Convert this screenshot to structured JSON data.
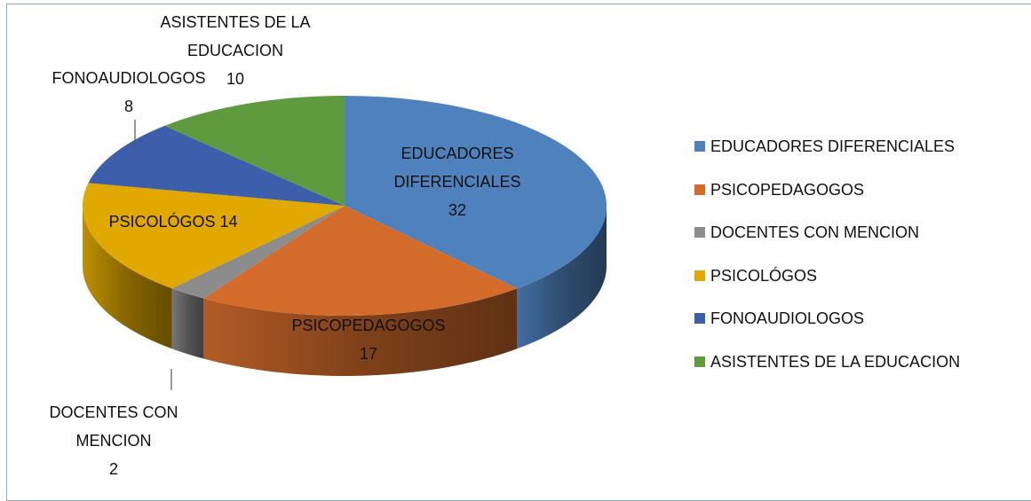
{
  "chart_data": {
    "type": "pie",
    "categories": [
      "EDUCADORES DIFERENCIALES",
      "PSICOPEDAGOGOS",
      "DOCENTES CON MENCION",
      "PSICOLÓGOS",
      "FONOAUDIOLOGOS",
      "ASISTENTES DE LA EDUCACION"
    ],
    "values": [
      32,
      17,
      2,
      14,
      8,
      10
    ],
    "colors": [
      "#4f81bd",
      "#d36c2b",
      "#8c8c8c",
      "#e0a800",
      "#3d5fab",
      "#5f9b3e"
    ],
    "legend": "right"
  }
}
